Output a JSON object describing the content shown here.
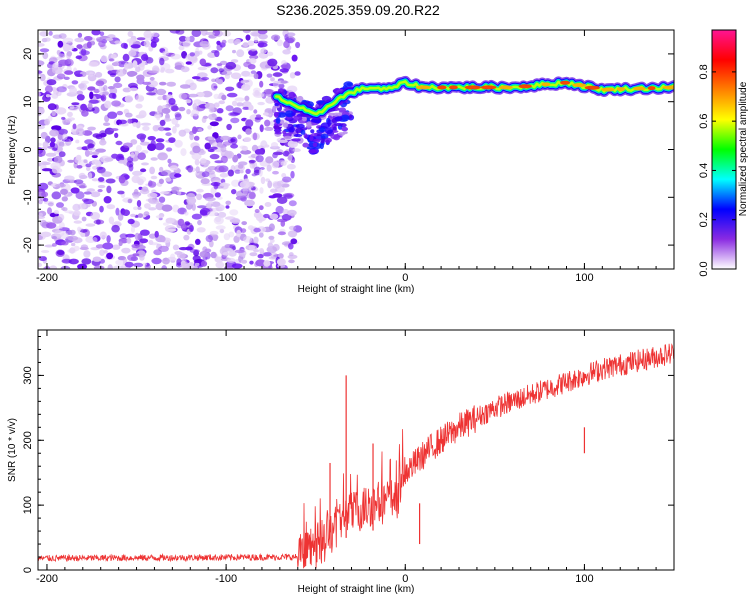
{
  "title": "S236.2025.359.09.20.R22",
  "chart_data": [
    {
      "type": "heatmap",
      "name": "spectrogram",
      "xlabel": "Height of straight line (km)",
      "ylabel": "Frequency (Hz)",
      "xlim": [
        -205,
        150
      ],
      "ylim": [
        -25,
        25
      ],
      "xticks": [
        -200,
        -100,
        0,
        100
      ],
      "yticks": [
        -20,
        -10,
        0,
        10,
        20
      ],
      "noise_region": {
        "x": [
          -205,
          -60
        ],
        "y": [
          -25,
          25
        ]
      },
      "transition_region": {
        "x": [
          -72,
          -30
        ],
        "y": [
          -2,
          14
        ]
      },
      "carrier": [
        {
          "x": -72,
          "y": 11
        },
        {
          "x": -60,
          "y": 9
        },
        {
          "x": -50,
          "y": 7
        },
        {
          "x": -40,
          "y": 10
        },
        {
          "x": -30,
          "y": 12
        },
        {
          "x": -20,
          "y": 13
        },
        {
          "x": -10,
          "y": 12.5
        },
        {
          "x": 0,
          "y": 14
        },
        {
          "x": 10,
          "y": 13
        },
        {
          "x": 30,
          "y": 13
        },
        {
          "x": 60,
          "y": 13
        },
        {
          "x": 90,
          "y": 14
        },
        {
          "x": 110,
          "y": 12.5
        },
        {
          "x": 150,
          "y": 13
        }
      ],
      "colorbar": {
        "label": "Normalized spectral amplitude",
        "ticks": [
          "0.0",
          "0.2",
          "0.4",
          "0.6",
          "0.8"
        ],
        "range": [
          0,
          0.97
        ],
        "colors": [
          "#ffffff",
          "#8a2be2",
          "#0000ff",
          "#00ffff",
          "#00ff00",
          "#ffff00",
          "#ff8000",
          "#ff0000",
          "#ff1493"
        ]
      }
    },
    {
      "type": "line",
      "name": "snr",
      "xlabel": "Height of straight line (km)",
      "ylabel": "SNR (10 * v/v)",
      "xlim": [
        -205,
        150
      ],
      "ylim": [
        0,
        370
      ],
      "xticks": [
        -200,
        -100,
        0,
        100
      ],
      "yticks": [
        0,
        100,
        200,
        300
      ],
      "color": "#ee3333",
      "trend": [
        {
          "x": -205,
          "y": 18
        },
        {
          "x": -60,
          "y": 20
        },
        {
          "x": -45,
          "y": 45
        },
        {
          "x": -35,
          "y": 80
        },
        {
          "x": -20,
          "y": 100
        },
        {
          "x": -5,
          "y": 110
        },
        {
          "x": 0,
          "y": 150
        },
        {
          "x": 15,
          "y": 190
        },
        {
          "x": 30,
          "y": 220
        },
        {
          "x": 50,
          "y": 250
        },
        {
          "x": 80,
          "y": 280
        },
        {
          "x": 110,
          "y": 310
        },
        {
          "x": 150,
          "y": 335
        }
      ],
      "spikes": [
        {
          "x": -33,
          "y": 300
        },
        {
          "x": -42,
          "y": 165
        },
        {
          "x": -18,
          "y": 195
        },
        {
          "x": 8,
          "y": 40
        },
        {
          "x": 100,
          "y": 220
        }
      ]
    }
  ]
}
